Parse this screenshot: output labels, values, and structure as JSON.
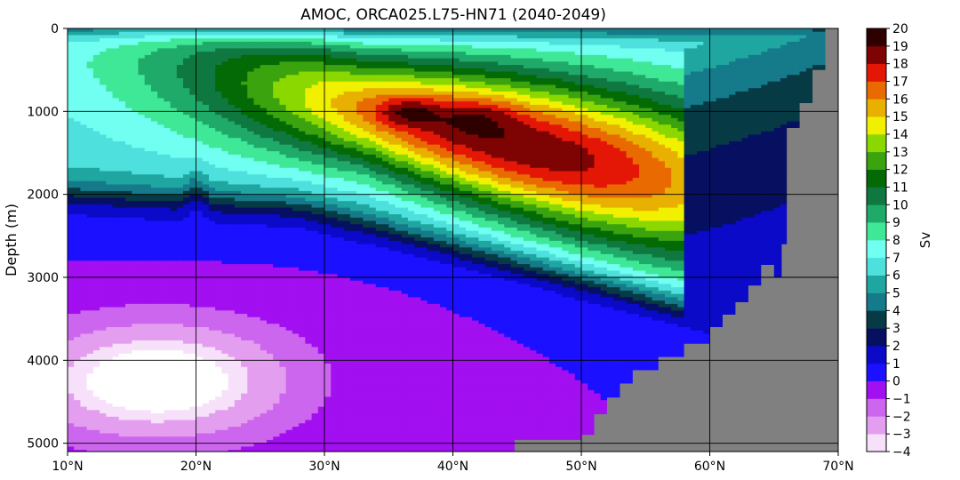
{
  "chart_data": {
    "type": "heatmap",
    "title": "AMOC, ORCA025.L75-HN71 (2040-2049)",
    "xlabel": "",
    "ylabel": "Depth (m)",
    "colorbar_label": "Sv",
    "xlim": [
      10,
      70
    ],
    "ylim": [
      5100,
      0
    ],
    "x_ticks": [
      10,
      20,
      30,
      40,
      50,
      60,
      70
    ],
    "x_tick_labels": [
      "10°N",
      "20°N",
      "30°N",
      "40°N",
      "50°N",
      "60°N",
      "70°N"
    ],
    "y_ticks": [
      0,
      1000,
      2000,
      3000,
      4000,
      5000
    ],
    "y_tick_labels": [
      "0",
      "1000",
      "2000",
      "3000",
      "4000",
      "5000"
    ],
    "grid": true,
    "colorbar_levels": [
      -4,
      -3,
      -2,
      -1,
      0,
      1,
      2,
      3,
      4,
      5,
      6,
      7,
      8,
      9,
      10,
      11,
      12,
      13,
      14,
      15,
      16,
      17,
      18,
      19,
      20
    ],
    "colorbar_tick_labels": [
      "−4",
      "−3",
      "−2",
      "−1",
      "0",
      "1",
      "2",
      "3",
      "4",
      "5",
      "6",
      "7",
      "8",
      "9",
      "10",
      "11",
      "12",
      "13",
      "14",
      "15",
      "16",
      "17",
      "18",
      "19",
      "20"
    ],
    "colorbar_colors": [
      "#f6e0fa",
      "#e49ef0",
      "#cc66ee",
      "#a20ff0",
      "#1b10ff",
      "#0a0ac8",
      "#071060",
      "#063a45",
      "#157a8a",
      "#20a6a0",
      "#4ee0dc",
      "#70fff0",
      "#3ee896",
      "#1faa6a",
      "#0f7840",
      "#046a06",
      "#3aa30e",
      "#8ad800",
      "#f0f000",
      "#e8b000",
      "#e86a00",
      "#e41606",
      "#7e0404",
      "#2e0000"
    ],
    "land_color": "#808080",
    "max_value_approx": 20,
    "max_location": {
      "lat": 37,
      "depth": 1000
    },
    "deep_cell_min_approx": -4,
    "deep_cell_center": {
      "lat": 17,
      "depth": 4300
    }
  }
}
